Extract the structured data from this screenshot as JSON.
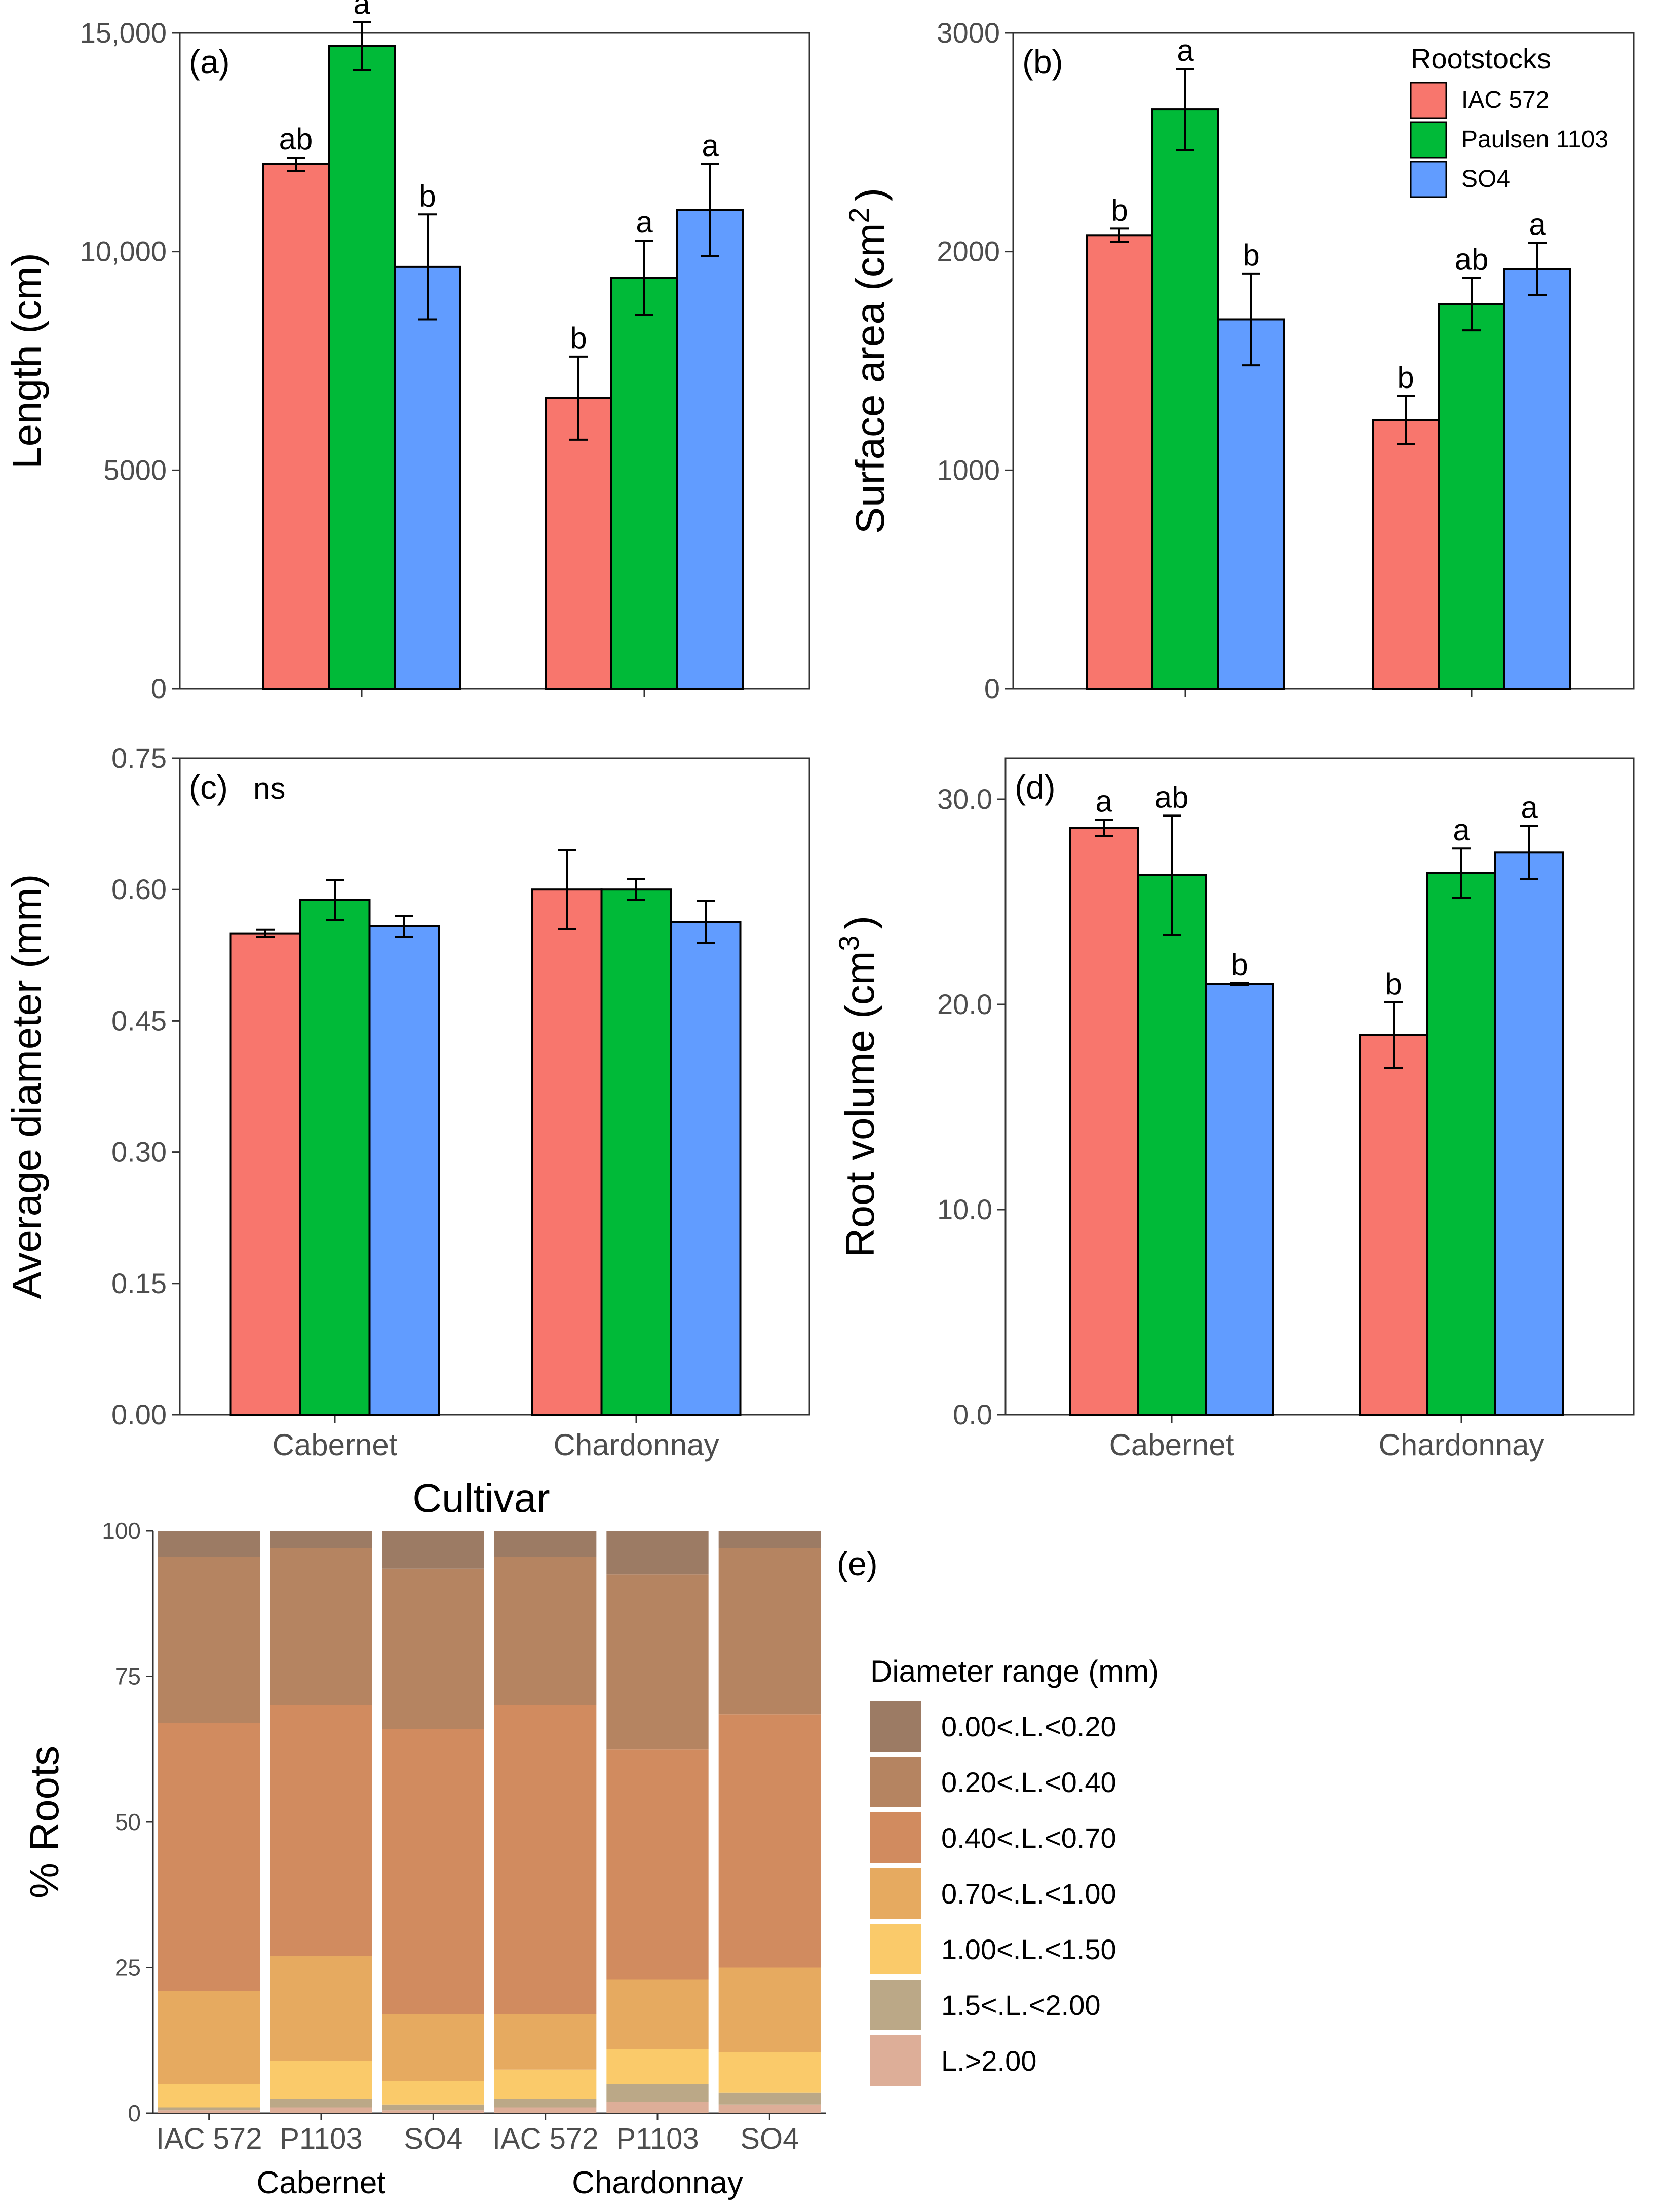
{
  "colors": {
    "IAC 572": "#F8766D",
    "Paulsen 1103": "#00BA38",
    "SO4": "#619CFF",
    "stack": [
      "#9C7B64",
      "#B58461",
      "#D18B5F",
      "#E6AA60",
      "#FACA6A",
      "#BBA887",
      "#DDAE98"
    ]
  },
  "shared": {
    "cultivars": [
      "Cabernet",
      "Chardonnay"
    ],
    "xlabel": "Cultivar",
    "legend_title": "Rootstocks",
    "series_names": [
      "IAC 572",
      "Paulsen 1103",
      "SO4"
    ]
  },
  "chart_data": [
    {
      "id": "a",
      "type": "bar",
      "panel_label": "(a)",
      "ylabel": "Length (cm)",
      "ylim": [
        0,
        15000
      ],
      "ticks": [
        0,
        5000,
        10000,
        15000
      ],
      "tick_labels": [
        "0",
        "5000",
        "10,000",
        "15,000"
      ],
      "categories": [
        "Cabernet",
        "Chardonnay"
      ],
      "show_xticklabels": false,
      "series": [
        {
          "name": "IAC 572",
          "values": [
            12000,
            6650
          ],
          "errors": [
            150,
            950
          ],
          "letters": [
            "ab",
            "b"
          ]
        },
        {
          "name": "Paulsen 1103",
          "values": [
            14700,
            9400
          ],
          "errors": [
            550,
            850
          ],
          "letters": [
            "a",
            "a"
          ]
        },
        {
          "name": "SO4",
          "values": [
            9650,
            10950
          ],
          "errors": [
            1200,
            1050
          ],
          "letters": [
            "b",
            "a"
          ]
        }
      ]
    },
    {
      "id": "b",
      "type": "bar",
      "panel_label": "(b)",
      "ylabel": "Surface area (cm",
      "ylabel_sup": "2",
      "ylabel_end": ")",
      "ylim": [
        0,
        3000
      ],
      "ticks": [
        0,
        1000,
        2000,
        3000
      ],
      "tick_labels": [
        "0",
        "1000",
        "2000",
        "3000"
      ],
      "categories": [
        "Cabernet",
        "Chardonnay"
      ],
      "show_xticklabels": false,
      "legend": true,
      "series": [
        {
          "name": "IAC 572",
          "values": [
            2075,
            1230
          ],
          "errors": [
            30,
            110
          ],
          "letters": [
            "b",
            "b"
          ]
        },
        {
          "name": "Paulsen 1103",
          "values": [
            2650,
            1760
          ],
          "errors": [
            185,
            120
          ],
          "letters": [
            "a",
            "ab"
          ]
        },
        {
          "name": "SO4",
          "values": [
            1690,
            1920
          ],
          "errors": [
            210,
            120
          ],
          "letters": [
            "b",
            "a"
          ]
        }
      ]
    },
    {
      "id": "c",
      "type": "bar",
      "panel_label": "(c)",
      "panel_note": "ns",
      "ylabel": "Average diameter (mm)",
      "ylim": [
        0,
        0.75
      ],
      "ticks": [
        0,
        0.15,
        0.3,
        0.45,
        0.6,
        0.75
      ],
      "tick_labels": [
        "0.00",
        "0.15",
        "0.30",
        "0.45",
        "0.60",
        "0.75"
      ],
      "categories": [
        "Cabernet",
        "Chardonnay"
      ],
      "show_xticklabels": true,
      "series": [
        {
          "name": "IAC 572",
          "values": [
            0.55,
            0.6
          ],
          "errors": [
            0.004,
            0.045
          ],
          "letters": [
            "",
            ""
          ]
        },
        {
          "name": "Paulsen 1103",
          "values": [
            0.588,
            0.6
          ],
          "errors": [
            0.023,
            0.012
          ],
          "letters": [
            "",
            ""
          ]
        },
        {
          "name": "SO4",
          "values": [
            0.558,
            0.563
          ],
          "errors": [
            0.012,
            0.024
          ],
          "letters": [
            "",
            ""
          ]
        }
      ]
    },
    {
      "id": "d",
      "type": "bar",
      "panel_label": "(d)",
      "ylabel": "Root volume (cm",
      "ylabel_sup": "3",
      "ylabel_end": ")",
      "ylim": [
        0,
        32
      ],
      "ticks": [
        0,
        10,
        20,
        30
      ],
      "tick_labels": [
        "0.0",
        "10.0",
        "20.0",
        "30.0"
      ],
      "categories": [
        "Cabernet",
        "Chardonnay"
      ],
      "show_xticklabels": true,
      "series": [
        {
          "name": "IAC 572",
          "values": [
            28.6,
            18.5
          ],
          "errors": [
            0.4,
            1.6
          ],
          "letters": [
            "a",
            "b"
          ]
        },
        {
          "name": "Paulsen 1103",
          "values": [
            26.3,
            26.4
          ],
          "errors": [
            2.9,
            1.2
          ],
          "letters": [
            "ab",
            "a"
          ]
        },
        {
          "name": "SO4",
          "values": [
            21.0,
            27.4
          ],
          "errors": [
            0.05,
            1.3
          ],
          "letters": [
            "b",
            "a"
          ]
        }
      ]
    },
    {
      "id": "e",
      "type": "stacked-bar",
      "panel_label": "(e)",
      "ylabel": "% Roots",
      "ylim": [
        0,
        100
      ],
      "ticks": [
        0,
        25,
        50,
        75,
        100
      ],
      "tick_labels": [
        "0",
        "25",
        "50",
        "75",
        "100"
      ],
      "categories": [
        "IAC 572",
        "P1103",
        "SO4",
        "IAC 572",
        "P1103",
        "SO4"
      ],
      "groups": [
        "Cabernet",
        "Chardonnay"
      ],
      "legend_title": "Diameter range (mm)",
      "series": [
        {
          "name": "L.>2.00",
          "values": [
            0.5,
            1.0,
            0.5,
            1.0,
            2.0,
            1.5
          ]
        },
        {
          "name": "1.5<.L.<2.00",
          "values": [
            0.5,
            1.5,
            1.0,
            1.5,
            3.0,
            2.0
          ]
        },
        {
          "name": "1.00<.L.<1.50",
          "values": [
            4.0,
            6.5,
            4.0,
            5.0,
            6.0,
            7.0
          ]
        },
        {
          "name": "0.70<.L.<1.00",
          "values": [
            16.0,
            18.0,
            11.5,
            9.5,
            12.0,
            14.5
          ]
        },
        {
          "name": "0.40<.L.<0.70",
          "values": [
            46.0,
            43.0,
            49.0,
            53.0,
            39.5,
            43.5
          ]
        },
        {
          "name": "0.20<.L.<0.40",
          "values": [
            28.5,
            27.0,
            27.5,
            25.5,
            30.0,
            28.5
          ]
        },
        {
          "name": "0.00<.L.<0.20",
          "values": [
            4.5,
            3.0,
            6.5,
            4.5,
            7.5,
            3.0
          ]
        }
      ]
    }
  ]
}
